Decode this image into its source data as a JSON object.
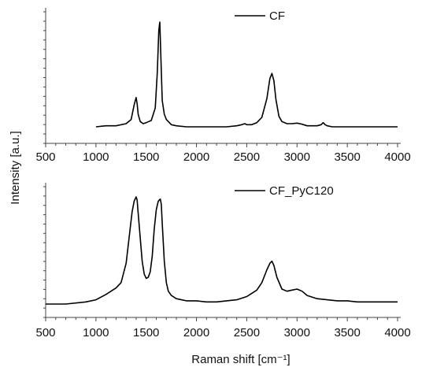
{
  "chart_data": {
    "type": "line",
    "ylabel": "Intensity [a.u.]",
    "xlabel": "Raman shift [cm⁻¹]",
    "grid": false,
    "xlim": [
      500,
      4000
    ],
    "x_ticks": [
      500,
      1000,
      1500,
      2000,
      2500,
      3000,
      3500,
      4000
    ],
    "panels": [
      {
        "legend_position": "top-right",
        "series": [
          {
            "name": "CF",
            "color": "#000000",
            "ylim": [
              0,
              1
            ],
            "x": [
              1000,
              1100,
              1200,
              1300,
              1350,
              1380,
              1400,
              1410,
              1420,
              1440,
              1470,
              1500,
              1550,
              1590,
              1610,
              1625,
              1635,
              1645,
              1660,
              1680,
              1700,
              1750,
              1800,
              1900,
              2000,
              2100,
              2200,
              2300,
              2400,
              2450,
              2480,
              2500,
              2520,
              2550,
              2600,
              2650,
              2700,
              2730,
              2750,
              2770,
              2790,
              2820,
              2850,
              2900,
              2950,
              3000,
              3050,
              3100,
              3150,
              3200,
              3240,
              3260,
              3280,
              3300,
              3350,
              3400,
              3500,
              3600,
              3700,
              3800,
              3900,
              4000
            ],
            "y": [
              0.0,
              0.01,
              0.01,
              0.03,
              0.07,
              0.21,
              0.28,
              0.22,
              0.12,
              0.05,
              0.03,
              0.04,
              0.06,
              0.18,
              0.52,
              0.92,
              1.0,
              0.7,
              0.25,
              0.12,
              0.07,
              0.02,
              0.01,
              0.0,
              0.0,
              0.0,
              0.0,
              0.0,
              0.01,
              0.02,
              0.03,
              0.02,
              0.02,
              0.02,
              0.04,
              0.09,
              0.27,
              0.46,
              0.51,
              0.44,
              0.26,
              0.1,
              0.05,
              0.03,
              0.03,
              0.035,
              0.025,
              0.01,
              0.01,
              0.01,
              0.02,
              0.04,
              0.02,
              0.01,
              0.0,
              0.0,
              0.0,
              0.0,
              0.0,
              0.0,
              0.0,
              0.0
            ]
          }
        ]
      },
      {
        "legend_position": "top-right",
        "series": [
          {
            "name": "CF_PyC120",
            "color": "#000000",
            "ylim": [
              0,
              1
            ],
            "x": [
              500,
              700,
              900,
              1000,
              1100,
              1200,
              1250,
              1300,
              1330,
              1360,
              1380,
              1400,
              1410,
              1420,
              1440,
              1460,
              1480,
              1500,
              1520,
              1540,
              1560,
              1580,
              1600,
              1620,
              1640,
              1650,
              1660,
              1680,
              1700,
              1720,
              1750,
              1800,
              1900,
              2000,
              2100,
              2200,
              2300,
              2400,
              2500,
              2550,
              2600,
              2650,
              2700,
              2730,
              2750,
              2770,
              2800,
              2850,
              2900,
              2950,
              3000,
              3050,
              3100,
              3200,
              3300,
              3400,
              3500,
              3600,
              3700,
              3800,
              3900,
              4000
            ],
            "y": [
              0.0,
              0.0,
              0.02,
              0.04,
              0.09,
              0.15,
              0.2,
              0.38,
              0.62,
              0.86,
              0.96,
              1.0,
              0.97,
              0.85,
              0.62,
              0.4,
              0.28,
              0.24,
              0.25,
              0.3,
              0.45,
              0.7,
              0.88,
              0.96,
              0.98,
              0.93,
              0.75,
              0.4,
              0.2,
              0.12,
              0.08,
              0.05,
              0.03,
              0.03,
              0.02,
              0.02,
              0.03,
              0.04,
              0.07,
              0.1,
              0.13,
              0.2,
              0.32,
              0.38,
              0.4,
              0.36,
              0.25,
              0.14,
              0.12,
              0.13,
              0.14,
              0.12,
              0.08,
              0.05,
              0.04,
              0.03,
              0.03,
              0.02,
              0.02,
              0.02,
              0.02,
              0.02
            ]
          }
        ]
      }
    ]
  }
}
